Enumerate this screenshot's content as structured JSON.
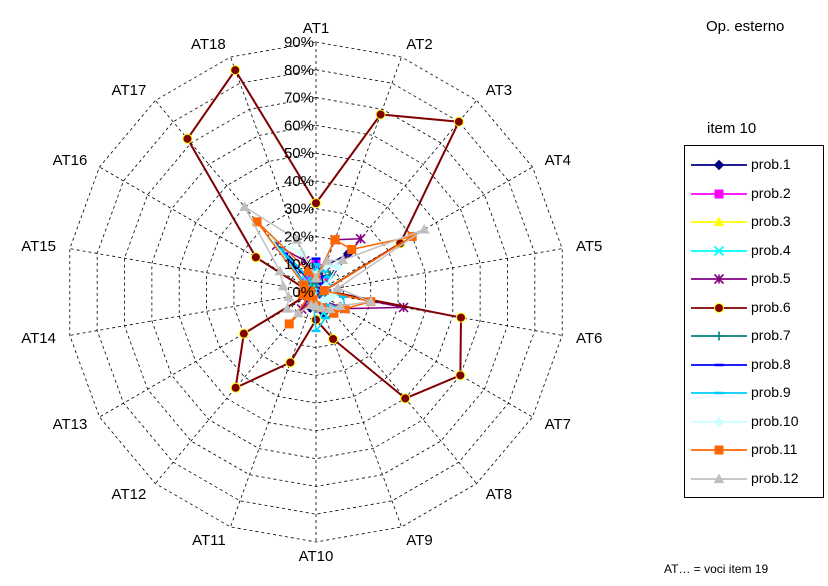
{
  "header": {
    "title": "Op. esterno",
    "item_label": "item 10"
  },
  "footnote": "AT… = voci item 19",
  "chart_data": {
    "type": "radar",
    "axes": [
      "AT1",
      "AT2",
      "AT3",
      "AT4",
      "AT5",
      "AT6",
      "AT7",
      "AT8",
      "AT9",
      "AT10",
      "AT11",
      "AT12",
      "AT13",
      "AT14",
      "AT15",
      "AT16",
      "AT17",
      "AT18"
    ],
    "radial_ticks": [
      "0%",
      "10%",
      "20%",
      "30%",
      "40%",
      "50%",
      "60%",
      "70%",
      "80%",
      "90%"
    ],
    "rmax": 90,
    "grid": true,
    "legend_position": "right",
    "series": [
      {
        "name": "prob.1",
        "color": "#000080",
        "marker": "diamond",
        "values": [
          5,
          10,
          18,
          2,
          2,
          4,
          3,
          3,
          8,
          2,
          6,
          3,
          2,
          2,
          2,
          4,
          15,
          3
        ]
      },
      {
        "name": "prob.2",
        "color": "#ff00ff",
        "marker": "square",
        "values": [
          10,
          9,
          5,
          2,
          2,
          4,
          4,
          3,
          6,
          2,
          3,
          3,
          3,
          2,
          2,
          3,
          5,
          5
        ]
      },
      {
        "name": "prob.3",
        "color": "#ffff00",
        "marker": "triangle",
        "values": [
          5,
          9,
          4,
          2,
          2,
          4,
          2,
          2,
          4,
          2,
          3,
          3,
          2,
          2,
          2,
          3,
          4,
          2
        ]
      },
      {
        "name": "prob.4",
        "color": "#00ffff",
        "marker": "x",
        "values": [
          8,
          4,
          3,
          2,
          2,
          5,
          2,
          2,
          8,
          5,
          3,
          3,
          2,
          2,
          2,
          3,
          5,
          2
        ]
      },
      {
        "name": "prob.5",
        "color": "#800080",
        "marker": "star",
        "values": [
          5,
          20,
          25,
          3,
          2,
          32,
          12,
          4,
          6,
          4,
          3,
          8,
          2,
          3,
          3,
          4,
          22,
          12
        ]
      },
      {
        "name": "prob.6",
        "color": "#800000",
        "marker": "circle",
        "values": [
          32,
          68,
          80,
          35,
          3,
          53,
          60,
          50,
          18,
          10,
          27,
          45,
          30,
          2,
          3,
          25,
          72,
          85
        ]
      },
      {
        "name": "prob.7",
        "color": "#008080",
        "marker": "plus",
        "values": [
          3,
          10,
          8,
          3,
          2,
          5,
          3,
          3,
          6,
          3,
          3,
          3,
          3,
          2,
          2,
          4,
          25,
          4
        ]
      },
      {
        "name": "prob.8",
        "color": "#0000ff",
        "marker": "dash",
        "values": [
          12,
          6,
          4,
          3,
          2,
          5,
          4,
          3,
          6,
          6,
          5,
          4,
          3,
          3,
          2,
          4,
          18,
          4
        ]
      },
      {
        "name": "prob.9",
        "color": "#00ccff",
        "marker": "dash",
        "values": [
          10,
          8,
          7,
          5,
          3,
          10,
          12,
          6,
          10,
          14,
          3,
          3,
          2,
          3,
          2,
          4,
          20,
          4
        ]
      },
      {
        "name": "prob.10",
        "color": "#ccffff",
        "marker": "diamond",
        "values": [
          6,
          10,
          12,
          4,
          3,
          6,
          5,
          4,
          6,
          3,
          3,
          3,
          2,
          3,
          3,
          5,
          25,
          15
        ]
      },
      {
        "name": "prob.11",
        "color": "#ff6600",
        "marker": "square",
        "values": [
          5,
          20,
          20,
          40,
          3,
          20,
          12,
          10,
          6,
          5,
          3,
          15,
          3,
          5,
          2,
          5,
          33,
          8
        ]
      },
      {
        "name": "prob.12",
        "color": "#c0c0c0",
        "marker": "triangle",
        "values": [
          5,
          12,
          15,
          45,
          8,
          20,
          10,
          8,
          6,
          5,
          5,
          10,
          12,
          10,
          12,
          15,
          40,
          20
        ]
      }
    ]
  }
}
